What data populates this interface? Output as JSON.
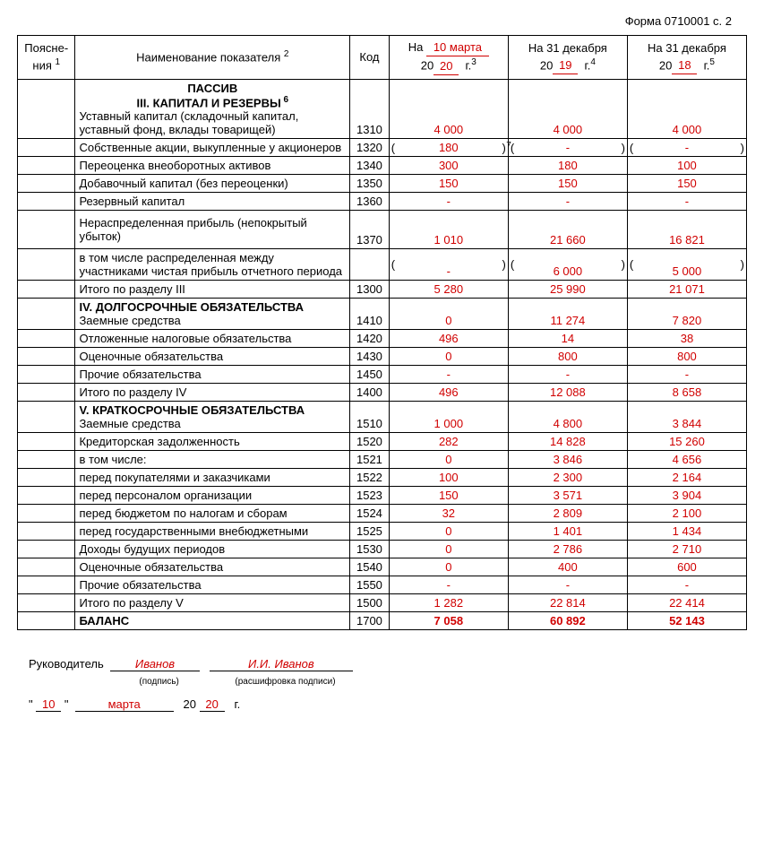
{
  "form_label": "Форма 0710001 с. 2",
  "colors": {
    "red": "#d00000",
    "black": "#000000",
    "bg": "#ffffff"
  },
  "header": {
    "expl": "Поясне-\nния",
    "expl_sup": "1",
    "name": "Наименование показателя",
    "name_sup": "2",
    "code": "Код",
    "col1": {
      "prefix": "На",
      "date": "10 марта",
      "year_prefix": "20",
      "year": "20",
      "year_suffix": "г.",
      "sup": "3"
    },
    "col2": {
      "prefix": "На 31 декабря",
      "year_prefix": "20",
      "year": "19",
      "year_suffix": "г.",
      "sup": "4"
    },
    "col3": {
      "prefix": "На 31 декабря",
      "year_prefix": "20",
      "year": "18",
      "year_suffix": "г.",
      "sup": "5"
    }
  },
  "rows": [
    {
      "type": "section_head",
      "name_center1": "ПАССИВ",
      "name_center2": "III. КАПИТАЛ И РЕЗЕРВЫ",
      "sup": "6",
      "name_left": "Уставный капитал (складочный капитал, уставный фонд, вклады товарищей)",
      "code": "1310",
      "v1": "4 000",
      "v2": "4 000",
      "v3": "4 000"
    },
    {
      "name": "Собственные акции, выкупленные у акционеров",
      "code": "1320",
      "v1": "180",
      "v2": "-",
      "v3": "-",
      "parens": true,
      "note7": true
    },
    {
      "name": "Переоценка внеоборотных активов",
      "code": "1340",
      "v1": "300",
      "v2": "180",
      "v3": "100"
    },
    {
      "name": "Добавочный капитал (без переоценки)",
      "code": "1350",
      "v1": "150",
      "v2": "150",
      "v3": "150"
    },
    {
      "name": "Резервный капитал",
      "code": "1360",
      "v1": "-",
      "v2": "-",
      "v3": "-"
    },
    {
      "name": "Нераспределенная прибыль (непокрытый убыток)",
      "code": "1370",
      "v1": "1 010",
      "v2": "21 660",
      "v3": "16 821",
      "tall": true
    },
    {
      "name": "в том числе распределенная между участниками чистая прибыль отчетного периода",
      "code": "",
      "v1": "-",
      "v2": "6 000",
      "v3": "5 000",
      "parens": true
    },
    {
      "name": "Итого по разделу III",
      "code": "1300",
      "v1": "5 280",
      "v2": "25 990",
      "v3": "21 071"
    },
    {
      "type": "section",
      "name": "IV. ДОЛГОСРОЧНЫЕ ОБЯЗАТЕЛЬСТВА",
      "sub": "Заемные средства",
      "code": "1410",
      "v1": "0",
      "v2": "11 274",
      "v3": "7 820"
    },
    {
      "name": "Отложенные налоговые обязательства",
      "code": "1420",
      "v1": "496",
      "v2": "14",
      "v3": "38"
    },
    {
      "name": "Оценочные обязательства",
      "code": "1430",
      "v1": "0",
      "v2": "800",
      "v3": "800"
    },
    {
      "name": "Прочие обязательства",
      "code": "1450",
      "v1": "-",
      "v2": "-",
      "v3": "-"
    },
    {
      "name": "Итого по разделу IV",
      "code": "1400",
      "v1": "496",
      "v2": "12 088",
      "v3": "8 658"
    },
    {
      "type": "section",
      "name": "V. КРАТКОСРОЧНЫЕ ОБЯЗАТЕЛЬСТВА",
      "sub": "Заемные средства",
      "code": "1510",
      "v1": "1 000",
      "v2": "4 800",
      "v3": "3 844"
    },
    {
      "name": "Кредиторская задолженность",
      "code": "1520",
      "v1": "282",
      "v2": "14 828",
      "v3": "15 260"
    },
    {
      "name": "в том числе:",
      "code": "1521",
      "v1": "0",
      "v2": "3 846",
      "v3": "4 656"
    },
    {
      "name": "перед покупателями и заказчиками",
      "code": "1522",
      "v1": "100",
      "v2": "2 300",
      "v3": "2 164"
    },
    {
      "name": "перед персоналом организации",
      "code": "1523",
      "v1": "150",
      "v2": "3 571",
      "v3": "3 904"
    },
    {
      "name": "перед бюджетом по налогам и сборам",
      "code": "1524",
      "v1": "32",
      "v2": "2 809",
      "v3": "2 100"
    },
    {
      "name": "перед государственными внебюджетными",
      "code": "1525",
      "v1": "0",
      "v2": "1 401",
      "v3": "1 434"
    },
    {
      "name": "Доходы будущих периодов",
      "code": "1530",
      "v1": "0",
      "v2": "2 786",
      "v3": "2 710"
    },
    {
      "name": "Оценочные обязательства",
      "code": "1540",
      "v1": "0",
      "v2": "400",
      "v3": "600"
    },
    {
      "name": "Прочие обязательства",
      "code": "1550",
      "v1": "-",
      "v2": "-",
      "v3": "-"
    },
    {
      "name": "Итого по разделу V",
      "code": "1500",
      "v1": "1 282",
      "v2": "22 814",
      "v3": "22 414"
    },
    {
      "name": "БАЛАНС",
      "code": "1700",
      "v1": "7 058",
      "v2": "60 892",
      "v3": "52 143",
      "bold": true
    }
  ],
  "signature": {
    "leader_label": "Руководитель",
    "sign_name": "Иванов",
    "sign_sub": "(подпись)",
    "full_name": "И.И. Иванов",
    "full_sub": "(расшифровка подписи)",
    "day": "10",
    "month": "марта",
    "year_prefix": "20",
    "year": "20",
    "year_suffix": "г."
  }
}
